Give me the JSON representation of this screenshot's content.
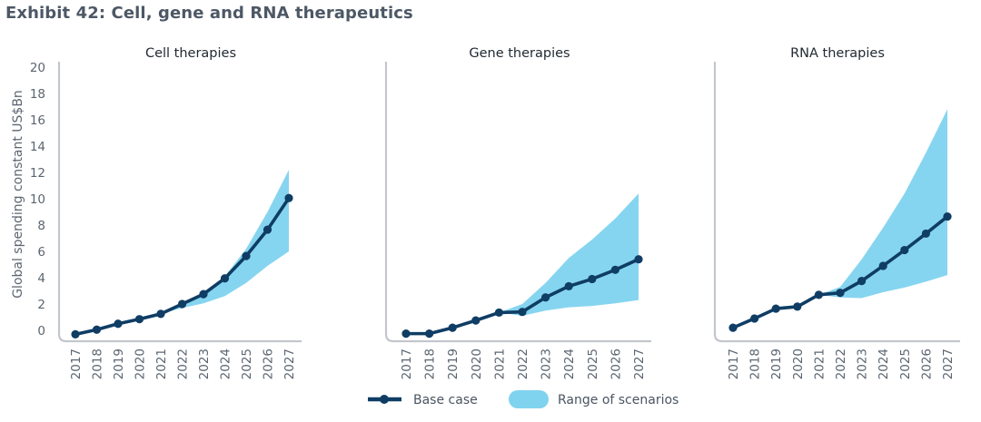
{
  "title": "Exhibit 42: Cell, gene and RNA therapeutics",
  "colors": {
    "base": "#0f3d64",
    "range": "#7fd3ef",
    "axis": "#c3c7cc",
    "text": "#5b6570"
  },
  "chart_data": [
    {
      "type": "area",
      "title": "Cell therapies",
      "ylabel": "Global spending constant US$Bn",
      "ylim": [
        0,
        20
      ],
      "yticks": [
        0,
        2,
        4,
        6,
        8,
        10,
        12,
        14,
        16,
        18,
        20
      ],
      "x": [
        "2017",
        "2018",
        "2019",
        "2020",
        "2021",
        "2022",
        "2023",
        "2024",
        "2025",
        "2026",
        "2027"
      ],
      "series": [
        {
          "name": "Base case",
          "values": [
            -0.3,
            0.05,
            0.5,
            0.85,
            1.25,
            2.0,
            2.75,
            3.95,
            5.65,
            7.65,
            10.05
          ]
        },
        {
          "name": "Range of scenarios (high)",
          "values": [
            null,
            null,
            null,
            null,
            1.25,
            2.0,
            2.8,
            4.1,
            6.2,
            9.0,
            12.2
          ]
        },
        {
          "name": "Range of scenarios (low)",
          "values": [
            null,
            null,
            null,
            null,
            1.25,
            1.7,
            2.05,
            2.6,
            3.6,
            4.9,
            6.0
          ]
        }
      ]
    },
    {
      "type": "area",
      "title": "Gene therapies",
      "ylim": [
        0,
        20
      ],
      "x": [
        "2017",
        "2018",
        "2019",
        "2020",
        "2021",
        "2022",
        "2023",
        "2024",
        "2025",
        "2026",
        "2027"
      ],
      "series": [
        {
          "name": "Base case",
          "values": [
            -0.25,
            -0.25,
            0.2,
            0.75,
            1.35,
            1.4,
            2.5,
            3.35,
            3.9,
            4.6,
            5.4
          ]
        },
        {
          "name": "Range of scenarios (high)",
          "values": [
            null,
            null,
            null,
            null,
            1.35,
            2.0,
            3.6,
            5.5,
            6.9,
            8.5,
            10.4
          ]
        },
        {
          "name": "Range of scenarios (low)",
          "values": [
            null,
            null,
            null,
            null,
            1.35,
            1.1,
            1.5,
            1.75,
            1.85,
            2.05,
            2.3
          ]
        }
      ]
    },
    {
      "type": "area",
      "title": "RNA therapies",
      "ylim": [
        0,
        20
      ],
      "x": [
        "2017",
        "2018",
        "2019",
        "2020",
        "2021",
        "2022",
        "2023",
        "2024",
        "2025",
        "2026",
        "2027"
      ],
      "series": [
        {
          "name": "Base case",
          "values": [
            0.2,
            0.9,
            1.65,
            1.8,
            2.7,
            2.85,
            3.75,
            4.9,
            6.1,
            7.35,
            8.65
          ]
        },
        {
          "name": "Range of scenarios (high)",
          "values": [
            null,
            null,
            null,
            null,
            2.7,
            3.3,
            5.4,
            7.8,
            10.4,
            13.5,
            16.8
          ]
        },
        {
          "name": "Range of scenarios (low)",
          "values": [
            null,
            null,
            null,
            null,
            2.7,
            2.5,
            2.45,
            2.9,
            3.25,
            3.7,
            4.2
          ]
        }
      ]
    }
  ],
  "legend": {
    "base": "Base case",
    "range": "Range of scenarios"
  }
}
